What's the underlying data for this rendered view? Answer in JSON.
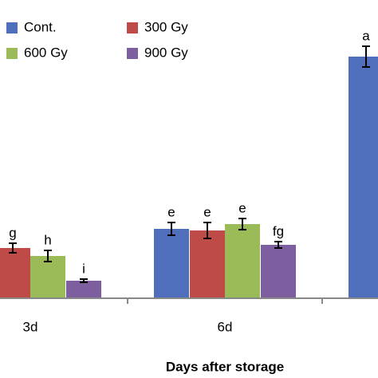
{
  "chart_data": {
    "type": "bar",
    "x_label": "Days after storage",
    "categories": [
      "3d",
      "6d",
      null
    ],
    "ylim": [
      0,
      320
    ],
    "series": [
      {
        "name": "Cont.",
        "color": "#4F6FBC",
        "values": [
          null,
          87,
          303
        ],
        "errors": [
          null,
          8,
          13
        ],
        "letters": [
          null,
          "e",
          "a"
        ]
      },
      {
        "name": "300 Gy",
        "color": "#BE4B48",
        "values": [
          63,
          85,
          0
        ],
        "errors": [
          6,
          10,
          null
        ],
        "letters": [
          "g",
          "e",
          null
        ]
      },
      {
        "name": "600 Gy",
        "color": "#9BBB59",
        "values": [
          53,
          93,
          0
        ],
        "errors": [
          7,
          7,
          null
        ],
        "letters": [
          "h",
          "e",
          null
        ]
      },
      {
        "name": "900 Gy",
        "color": "#7D5FA0",
        "values": [
          22,
          67,
          0
        ],
        "errors": [
          2,
          4,
          null
        ],
        "letters": [
          "i",
          "fg",
          null
        ]
      }
    ]
  }
}
